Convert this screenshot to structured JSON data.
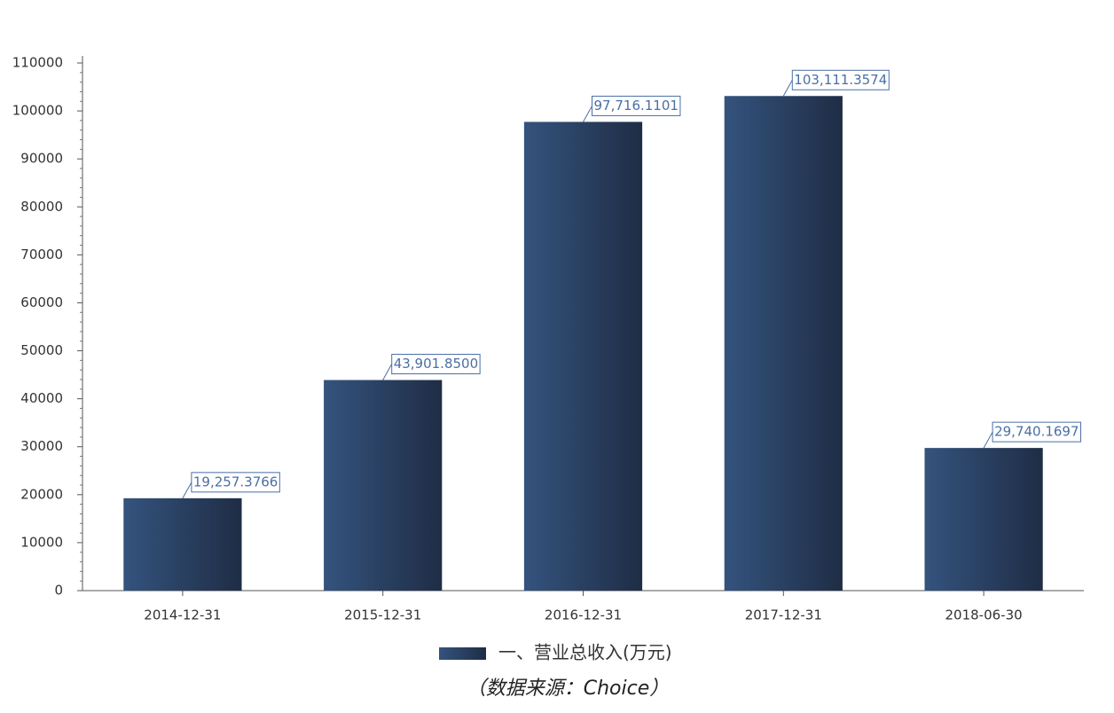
{
  "chart_data": {
    "type": "bar",
    "categories": [
      "2014-12-31",
      "2015-12-31",
      "2016-12-31",
      "2017-12-31",
      "2018-06-30"
    ],
    "series": [
      {
        "name": "一、营业总收入(万元)",
        "color": "#34537e",
        "values": [
          19257.3766,
          43901.85,
          97716.1101,
          103111.3574,
          29740.1697
        ],
        "value_labels": [
          "19,257.3766",
          "43,901.8500",
          "97,716.1101",
          "103,111.3574",
          "29,740.1697"
        ]
      }
    ],
    "ylim": [
      0,
      110000
    ],
    "yticks": [
      0,
      10000,
      20000,
      30000,
      40000,
      50000,
      60000,
      70000,
      80000,
      90000,
      100000,
      110000
    ],
    "grid": false,
    "source": "（数据来源：Choice）"
  }
}
